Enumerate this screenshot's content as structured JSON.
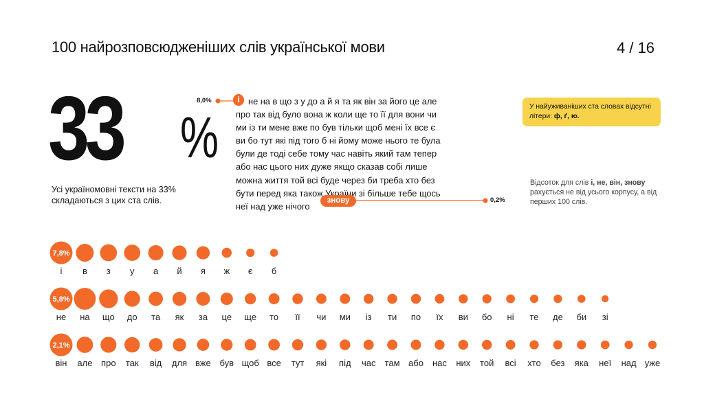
{
  "header": {
    "title": "100 найрозповсюдженіших слів української мови",
    "page": "4 / 16"
  },
  "highlight": {
    "value": "33",
    "symbol": "%",
    "caption": "Усі україномовні тексти на 33% складаються з цих ста слів."
  },
  "word_cloud": {
    "first_word": "і",
    "last_word": "знову",
    "max_pct": "8,0%",
    "min_pct": "0,2%",
    "text": "не на в що з у до а й я та як він за його це але\nпро так від було вона ж коли ще то її для вони чи\nми із ти мене вже по був тільки щоб мені їх все є\nви бо тут які під того б ні йому може нього те була\nбули де тоді себе тому час навіть який там тепер\nабо нас цього них дуже якщо сказав собі лише\nможна життя той всі буде через би треба хто без\nбути перед яка також України зі більше тебе щось\nнеї над уже нічого"
  },
  "note_box": {
    "text_prefix": "У найуживаніших ста словах відсутні літери: ",
    "letters": "ф, ґ, ю."
  },
  "side_note": {
    "prefix": "Відсоток для слів ",
    "words": "і, не, він, знову",
    "suffix": " рахується не від усього корпусу, а від перших 100 слів."
  },
  "colors": {
    "accent": "#f16a2a",
    "note_bg": "#f7d34b"
  },
  "chart_data": {
    "type": "scatter",
    "encoding": "bubble area proportional to word frequency",
    "rows": [
      {
        "label": "7,8%",
        "words": [
          "і",
          "в",
          "з",
          "у",
          "а",
          "й",
          "я",
          "ж",
          "є",
          "б"
        ],
        "values": [
          7.8,
          4.5,
          4.1,
          3.8,
          3.3,
          3.0,
          2.5,
          1.4,
          1.0,
          0.9
        ]
      },
      {
        "label": "5,8%",
        "words": [
          "не",
          "на",
          "що",
          "до",
          "та",
          "як",
          "за",
          "це",
          "ще",
          "то",
          "її",
          "чи",
          "ми",
          "із",
          "ти",
          "по",
          "їх",
          "ви",
          "бо",
          "ні",
          "те",
          "де",
          "би",
          "зі"
        ],
        "values": [
          5.8,
          6.8,
          5.0,
          3.6,
          2.9,
          2.8,
          2.7,
          2.2,
          1.8,
          1.7,
          1.6,
          1.5,
          1.5,
          1.4,
          1.4,
          1.4,
          1.3,
          1.2,
          1.2,
          1.1,
          1.0,
          1.0,
          0.9,
          0.7
        ]
      },
      {
        "label": "2,1%",
        "words": [
          "він",
          "але",
          "про",
          "так",
          "від",
          "для",
          "вже",
          "був",
          "щоб",
          "все",
          "тут",
          "які",
          "під",
          "час",
          "там",
          "або",
          "нас",
          "них",
          "той",
          "всі",
          "хто",
          "без",
          "яка",
          "неї",
          "над",
          "уже"
        ],
        "values": [
          2.1,
          3.8,
          3.6,
          3.4,
          2.6,
          2.5,
          2.1,
          2.0,
          1.9,
          1.9,
          1.8,
          1.6,
          1.6,
          1.5,
          1.5,
          1.5,
          1.4,
          1.4,
          1.4,
          1.3,
          1.2,
          1.2,
          1.2,
          1.1,
          1.0,
          1.0
        ]
      }
    ]
  }
}
